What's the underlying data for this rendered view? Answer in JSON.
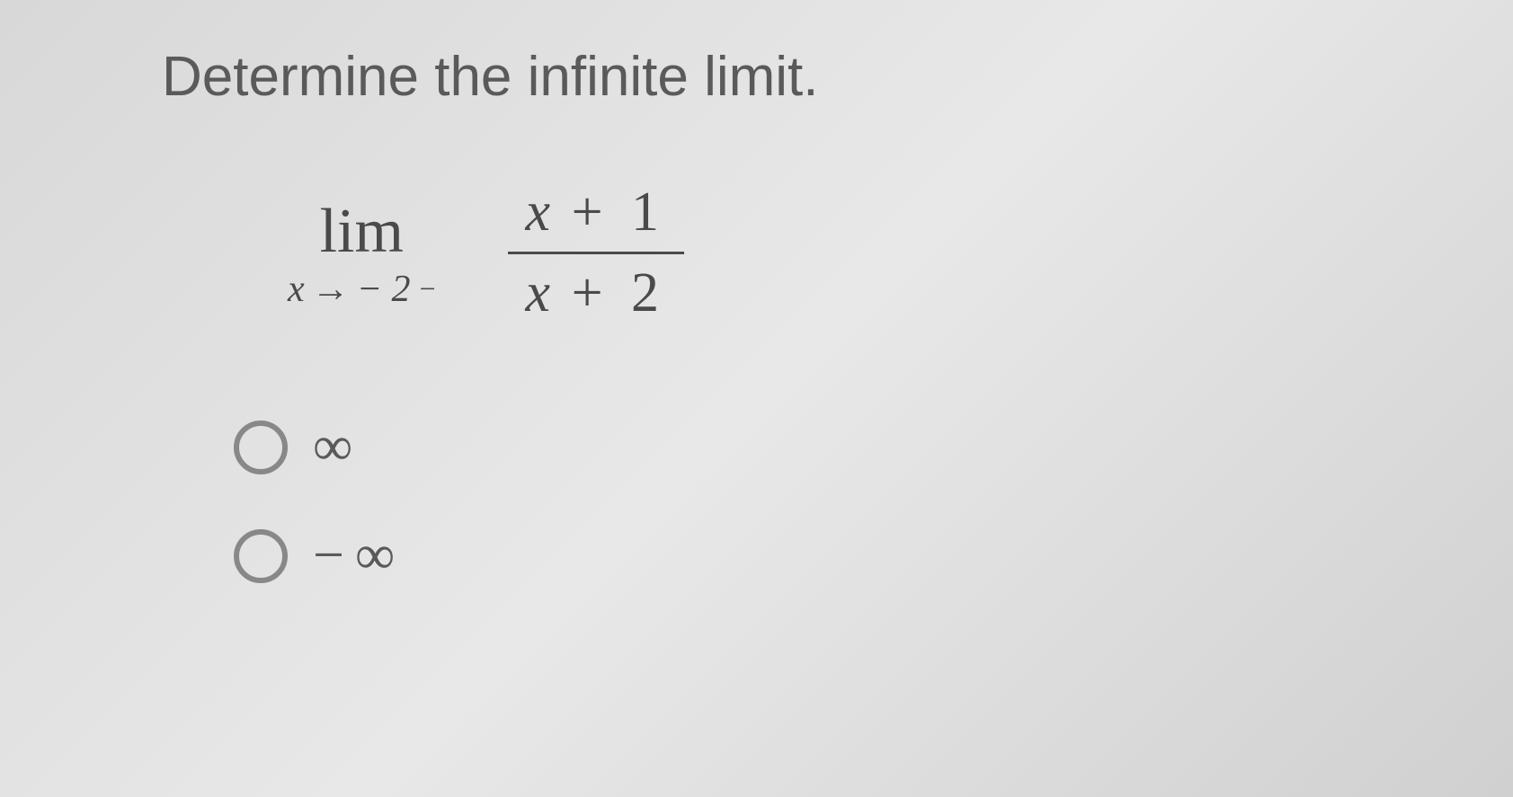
{
  "question": {
    "prompt": "Determine the infinite limit."
  },
  "expression": {
    "limit_text": "lim",
    "variable": "x",
    "arrow_symbol": "→",
    "approach_value": "− 2",
    "superscript": "−",
    "numerator_var": "x",
    "numerator_op": "+",
    "numerator_const": "1",
    "denominator_var": "x",
    "denominator_op": "+",
    "denominator_const": "2"
  },
  "options": [
    {
      "label": "∞",
      "has_minus": false
    },
    {
      "label": "∞",
      "has_minus": true,
      "minus": "−"
    }
  ],
  "colors": {
    "text_primary": "#5a5a5a",
    "text_math": "#4a4a4a",
    "radio_border": "#888888",
    "background_start": "#d8d8d8",
    "background_end": "#d0d0d0"
  },
  "typography": {
    "question_fontsize": 62,
    "lim_fontsize": 70,
    "approach_fontsize": 42,
    "fraction_fontsize": 62,
    "option_fontsize": 62
  }
}
